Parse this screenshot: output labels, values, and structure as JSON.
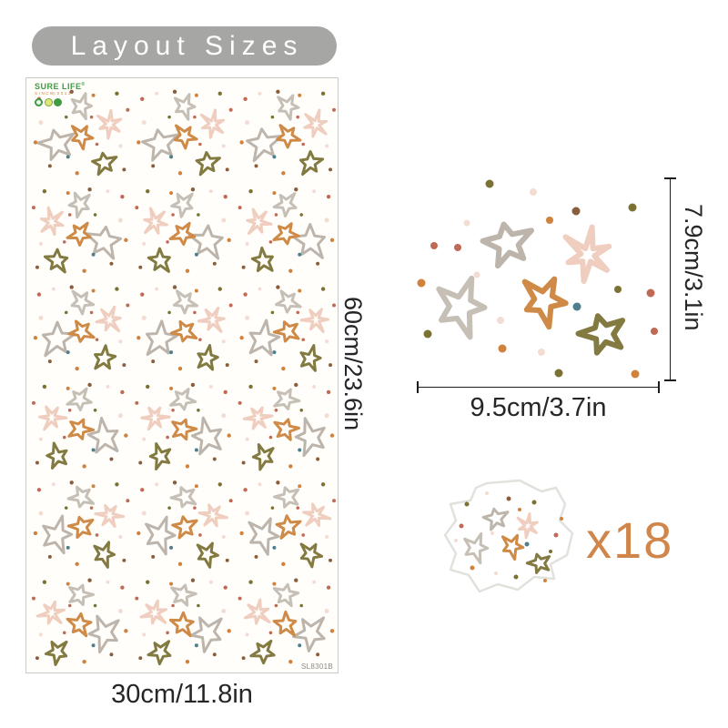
{
  "title": "Layout Sizes",
  "sheet": {
    "brand_name": "SURE LIFE",
    "brand_reg": "®",
    "brand_since": "SINCE 2013",
    "sku": "SL8301B",
    "width_label": "30cm/11.8in",
    "height_label": "60cm/23.6in",
    "cluster_grid": {
      "cols": 3,
      "rows": 6
    }
  },
  "detail": {
    "width_label": "9.5cm/3.7in",
    "height_label": "7.9cm/3.1in"
  },
  "sticker": {
    "count_label": "x18"
  },
  "colors": {
    "star_gray": "#bdb5ac",
    "star_gray2": "#c6bfb6",
    "star_pink": "#efcec0",
    "star_orange": "#ce8a46",
    "star_olive": "#827a40",
    "dot_orange": "#d0813c",
    "dot_rust": "#c06a55",
    "dot_olive": "#7a7232",
    "dot_pink": "#f2dcd3",
    "dot_brown": "#8a5e3c",
    "dot_teal": "#4e7f8e",
    "accent_orange": "#d0854a",
    "pill_gray": "#a6a6a4",
    "measure_line": "#1c1c1c",
    "brand_green": "#3e9b41",
    "brand_orange": "#c8823c"
  }
}
